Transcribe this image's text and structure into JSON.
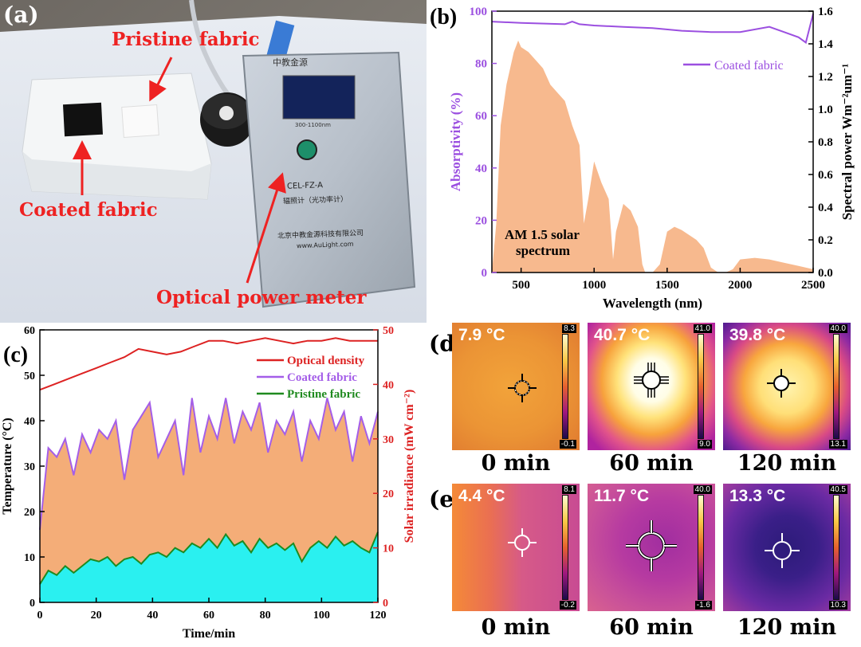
{
  "panels": {
    "a": {
      "label": "(a)",
      "pristine": "Pristine fabric",
      "coated": "Coated fabric",
      "meter": "Optical power meter",
      "device": {
        "brand": "中教金源",
        "model": "CEL-FZ-A",
        "subtitle": "辐照计（光功率计）",
        "company": "北京中教金源科技有限公司",
        "web": "www.AuLight.com",
        "range": "300-1100nm"
      }
    },
    "b": {
      "label": "(b)",
      "annotation_line1": "AM 1.5 solar",
      "annotation_line2": "spectrum",
      "legend": "Coated fabric"
    },
    "c": {
      "label": "(c)"
    },
    "d": {
      "label": "(d)",
      "images": [
        {
          "temp": "7.9 °C",
          "max": "8.3",
          "min": "-0.1",
          "time": "0 min"
        },
        {
          "temp": "40.7 °C",
          "max": "41.0",
          "min": "9.0",
          "time": "60 min"
        },
        {
          "temp": "39.8 °C",
          "max": "40.0",
          "min": "13.1",
          "time": "120 min"
        }
      ]
    },
    "e": {
      "label": "(e)",
      "images": [
        {
          "temp": "4.4 °C",
          "max": "8.1",
          "min": "-0.2",
          "time": "0 min"
        },
        {
          "temp": "11.7 °C",
          "max": "40.0",
          "min": "-1.6",
          "time": "60 min"
        },
        {
          "temp": "13.3 °C",
          "max": "40.5",
          "min": "10.3",
          "time": "120 min"
        }
      ]
    }
  },
  "chart_data": [
    {
      "id": "b",
      "type": "area",
      "xlabel": "Wavelength (nm)",
      "ylabel": "Absorptivity (%)",
      "y2label": "Spectral power Wm⁻²um⁻¹",
      "xlim": [
        300,
        2500
      ],
      "ylim": [
        0,
        100
      ],
      "y2lim": [
        0,
        1.6
      ],
      "xticks": [
        500,
        1000,
        1500,
        2000,
        2500
      ],
      "yticks": [
        0,
        20,
        40,
        60,
        80,
        100
      ],
      "y2ticks": [
        0.0,
        0.2,
        0.4,
        0.6,
        0.8,
        1.0,
        1.2,
        1.4,
        1.6
      ],
      "series": [
        {
          "name": "Coated fabric",
          "axis": "left",
          "color": "#9b4fe0",
          "x": [
            300,
            500,
            800,
            850,
            900,
            1000,
            1200,
            1400,
            1600,
            1800,
            2000,
            2200,
            2300,
            2400,
            2450,
            2500
          ],
          "y": [
            96,
            95.5,
            95,
            96,
            95,
            94.5,
            94,
            93.5,
            92.5,
            92,
            92,
            94,
            92,
            90,
            88,
            99
          ]
        },
        {
          "name": "AM 1.5 solar spectrum",
          "axis": "right",
          "color": "#f7b98e",
          "x": [
            300,
            330,
            360,
            400,
            450,
            480,
            500,
            550,
            600,
            650,
            700,
            750,
            800,
            850,
            900,
            930,
            960,
            1000,
            1050,
            1100,
            1130,
            1150,
            1200,
            1250,
            1300,
            1330,
            1350,
            1400,
            1450,
            1500,
            1550,
            1600,
            1700,
            1750,
            1800,
            1850,
            1900,
            1950,
            2000,
            2100,
            2200,
            2300,
            2400,
            2500
          ],
          "y": [
            0.0,
            0.3,
            0.9,
            1.15,
            1.35,
            1.42,
            1.38,
            1.35,
            1.3,
            1.25,
            1.15,
            1.1,
            1.05,
            0.9,
            0.78,
            0.3,
            0.45,
            0.68,
            0.55,
            0.45,
            0.08,
            0.25,
            0.42,
            0.38,
            0.28,
            0.05,
            0.0,
            0.0,
            0.05,
            0.25,
            0.28,
            0.26,
            0.2,
            0.15,
            0.03,
            0.0,
            0.0,
            0.02,
            0.08,
            0.09,
            0.08,
            0.06,
            0.04,
            0.02
          ]
        }
      ]
    },
    {
      "id": "c",
      "type": "line",
      "xlabel": "Time/min",
      "ylabel": "Temperature (°C)",
      "y2label": "Solar irradiance (mW cm⁻²)",
      "xlim": [
        0,
        120
      ],
      "ylim": [
        0,
        60
      ],
      "y2lim": [
        0,
        50
      ],
      "xticks": [
        0,
        20,
        40,
        60,
        80,
        100,
        120
      ],
      "yticks": [
        0,
        10,
        20,
        30,
        40,
        50,
        60
      ],
      "y2ticks": [
        0,
        10,
        20,
        30,
        40,
        50
      ],
      "series": [
        {
          "name": "Optical density",
          "axis": "right",
          "color": "#dd2222",
          "x": [
            0,
            5,
            10,
            15,
            20,
            25,
            30,
            35,
            40,
            45,
            50,
            55,
            60,
            65,
            70,
            75,
            80,
            85,
            90,
            95,
            100,
            105,
            110,
            115,
            120
          ],
          "y": [
            39,
            40,
            41,
            42,
            43,
            44,
            45,
            46.5,
            46,
            45.5,
            46,
            47,
            48,
            48,
            47.5,
            48,
            48.5,
            48,
            47.5,
            48,
            48,
            48.5,
            48,
            48,
            48
          ]
        },
        {
          "name": "Coated fabric",
          "axis": "left",
          "color": "#a45ee8",
          "x": [
            0,
            3,
            6,
            9,
            12,
            15,
            18,
            21,
            24,
            27,
            30,
            33,
            36,
            39,
            42,
            45,
            48,
            51,
            54,
            57,
            60,
            63,
            66,
            69,
            72,
            75,
            78,
            81,
            84,
            87,
            90,
            93,
            96,
            99,
            102,
            105,
            108,
            111,
            114,
            117,
            120
          ],
          "y": [
            16,
            34,
            32,
            36,
            28,
            37,
            33,
            38,
            36,
            40,
            27,
            38,
            41,
            44,
            32,
            36,
            40,
            28,
            45,
            33,
            41,
            36,
            45,
            35,
            42,
            38,
            44,
            33,
            40,
            37,
            42,
            31,
            40,
            36,
            45,
            38,
            42,
            31,
            41,
            35,
            42
          ]
        },
        {
          "name": "Pristine fabric",
          "axis": "left",
          "color": "#1f8a1f",
          "x": [
            0,
            3,
            6,
            9,
            12,
            15,
            18,
            21,
            24,
            27,
            30,
            33,
            36,
            39,
            42,
            45,
            48,
            51,
            54,
            57,
            60,
            63,
            66,
            69,
            72,
            75,
            78,
            81,
            84,
            87,
            90,
            93,
            96,
            99,
            102,
            105,
            108,
            111,
            114,
            117,
            120
          ],
          "y": [
            4,
            7,
            6,
            8,
            6.5,
            8,
            9.5,
            9,
            10,
            8,
            9.5,
            10,
            8.5,
            10.5,
            11,
            10,
            12,
            11,
            13,
            12,
            14,
            12,
            15,
            12.5,
            13.5,
            11,
            14,
            12,
            13,
            11.5,
            13,
            9,
            12,
            13.5,
            12,
            14.5,
            12.5,
            13.5,
            12,
            11,
            15.5
          ]
        }
      ]
    }
  ]
}
